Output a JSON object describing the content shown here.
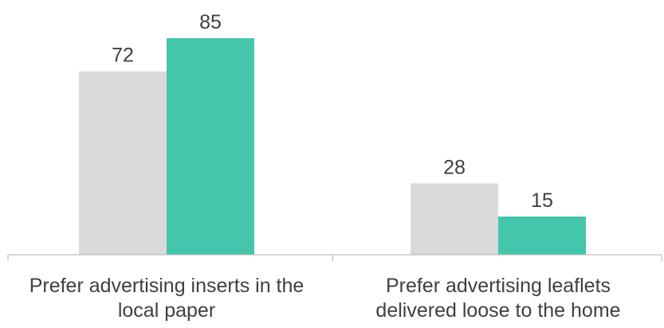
{
  "chart_data": {
    "type": "bar",
    "categories": [
      [
        "Prefer advertising inserts in the",
        "local paper"
      ],
      [
        "Prefer advertising leaflets",
        "delivered loose to the home"
      ]
    ],
    "series": [
      {
        "values": [
          72,
          28
        ],
        "color": "#d9d9d9"
      },
      {
        "values": [
          85,
          15
        ],
        "color": "#43c6ac"
      }
    ],
    "ylim": [
      0,
      100
    ],
    "grid": false,
    "legend": "none"
  }
}
